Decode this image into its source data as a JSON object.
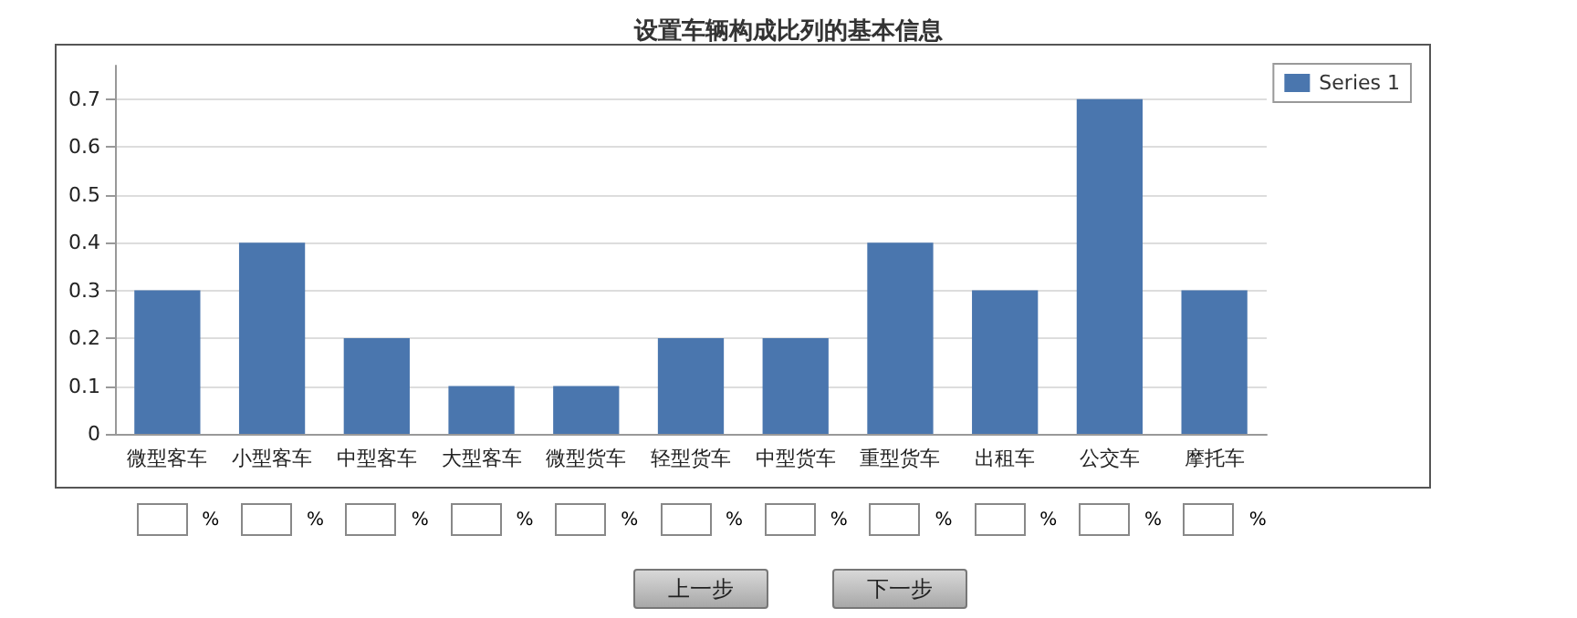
{
  "chart_data": {
    "type": "bar",
    "title": "设置车辆构成比列的基本信息",
    "categories": [
      "微型客车",
      "小型客车",
      "中型客车",
      "大型客车",
      "微型货车",
      "轻型货车",
      "中型货车",
      "重型货车",
      "出租车",
      "公交车",
      "摩托车"
    ],
    "series": [
      {
        "name": "Series 1",
        "color": "#4a76ae",
        "values": [
          0.3,
          0.4,
          0.2,
          0.1,
          0.1,
          0.2,
          0.2,
          0.4,
          0.3,
          0.7,
          0.3
        ]
      }
    ],
    "ylim": [
      0,
      0.77
    ],
    "yticks": [
      0,
      0.1,
      0.2,
      0.3,
      0.4,
      0.5,
      0.6,
      0.7
    ],
    "grid": "y",
    "legend": "top right",
    "annotations": [
      "%",
      "上一步",
      "下一步"
    ]
  }
}
